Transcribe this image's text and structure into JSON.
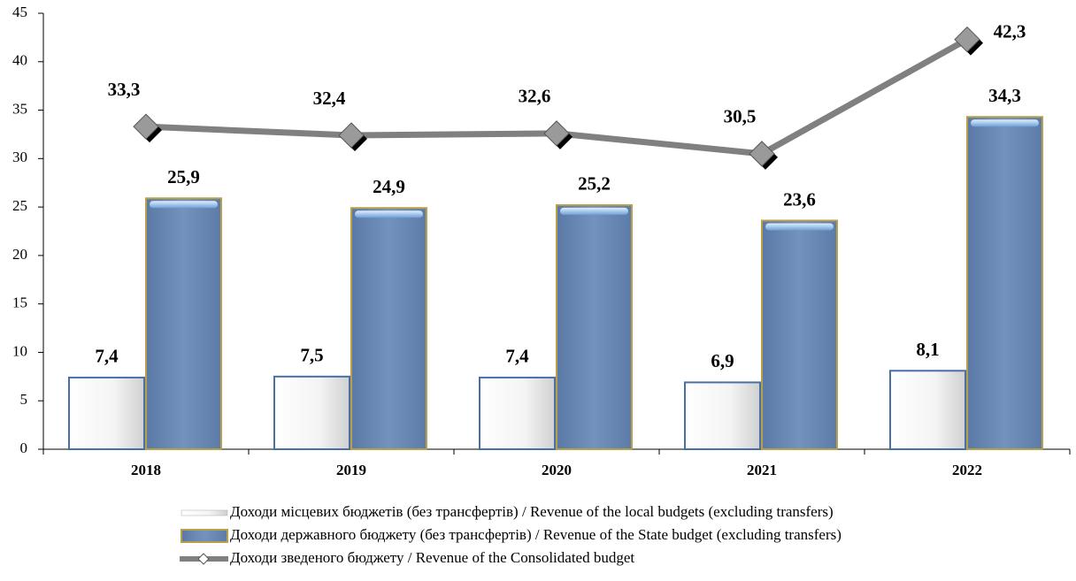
{
  "chart_data": {
    "type": "bar_line",
    "categories": [
      "2018",
      "2019",
      "2020",
      "2021",
      "2022"
    ],
    "series": [
      {
        "name": "Доходи місцевих бюджетів (без трансфертів) / Revenue of the local budgets (excluding transfers)",
        "type": "bar",
        "color": "#ffffff",
        "values": [
          7.4,
          7.5,
          7.4,
          6.9,
          8.1
        ],
        "value_labels": [
          "7,4",
          "7,5",
          "7,4",
          "6,9",
          "8,1"
        ]
      },
      {
        "name": "Доходи державного бюджету (без трансфертів) / Revenue of the State budget (excluding transfers)",
        "type": "bar",
        "color": "#6d8ab3",
        "values": [
          25.9,
          24.9,
          25.2,
          23.6,
          34.3
        ],
        "value_labels": [
          "25,9",
          "24,9",
          "25,2",
          "23,6",
          "34,3"
        ]
      },
      {
        "name": "Доходи зведеного бюджету / Revenue of the Consolidated budget",
        "type": "line",
        "color": "#808080",
        "values": [
          33.3,
          32.4,
          32.6,
          30.5,
          42.3
        ],
        "value_labels": [
          "33,3",
          "32,4",
          "32,6",
          "30,5",
          "42,3"
        ]
      }
    ],
    "ylim": [
      0,
      45
    ],
    "yticks": [
      0,
      5,
      10,
      15,
      20,
      25,
      30,
      35,
      40,
      45
    ],
    "legend": "bottom"
  }
}
